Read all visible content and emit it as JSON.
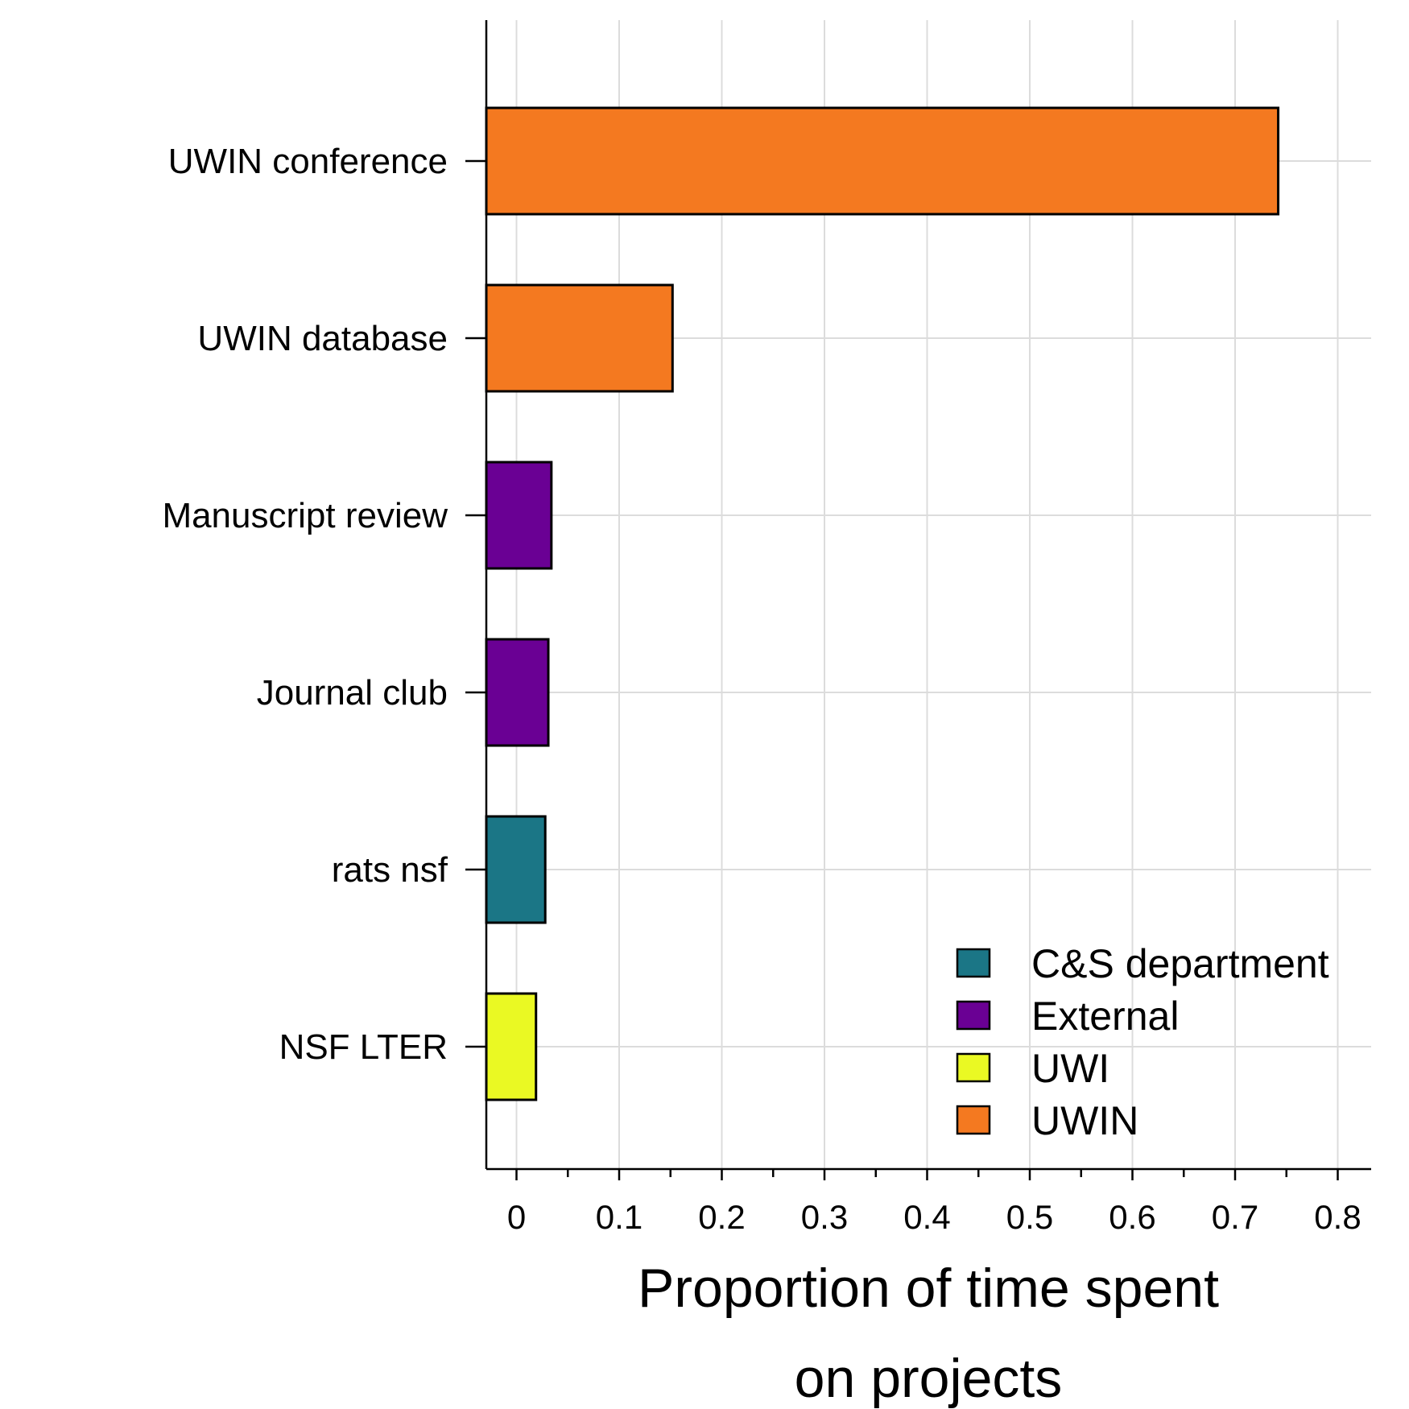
{
  "chart_data": {
    "type": "bar",
    "orientation": "horizontal",
    "categories": [
      "UWIN conference",
      "UWIN database",
      "Manuscript review",
      "Journal club",
      "rats nsf",
      "NSF LTER"
    ],
    "values": [
      0.742,
      0.152,
      0.034,
      0.031,
      0.028,
      0.019
    ],
    "groups": [
      "UWIN",
      "UWIN",
      "External",
      "External",
      "C&S department",
      "UWI"
    ],
    "xlabel_lines": [
      "Proportion of time spent",
      "on projects"
    ],
    "ylabel": "",
    "xlim": [
      -0.032,
      0.832
    ],
    "xticks": [
      0,
      0.1,
      0.2,
      0.3,
      0.4,
      0.5,
      0.6,
      0.7,
      0.8
    ],
    "xtick_labels": [
      "0",
      "0.1",
      "0.2",
      "0.3",
      "0.4",
      "0.5",
      "0.6",
      "0.7",
      "0.8"
    ],
    "minor_xticks": [
      0.05,
      0.15,
      0.25,
      0.35,
      0.45,
      0.55,
      0.65,
      0.75
    ],
    "grid": true,
    "legend": {
      "position": "bottom-right",
      "entries": [
        {
          "label": "C&S department",
          "color": "#1b7686"
        },
        {
          "label": "External",
          "color": "#6a0094"
        },
        {
          "label": "UWI",
          "color": "#eaf923"
        },
        {
          "label": "UWIN",
          "color": "#f47920"
        }
      ]
    }
  }
}
